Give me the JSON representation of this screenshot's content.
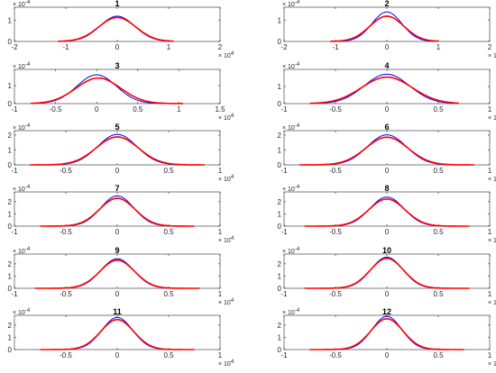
{
  "colors": {
    "series_1": "#0000ff",
    "series_2": "#ff0000",
    "axes": "#262626"
  },
  "chart_data": [
    {
      "type": "line",
      "title": "1",
      "xlim": [
        -2,
        2
      ],
      "ylim": [
        0,
        1.6
      ],
      "x_ticks": [
        "-2",
        "-1",
        "0",
        "1",
        "2"
      ],
      "y_ticks": [
        "0",
        "1"
      ],
      "x_multiplier": "× 10^4",
      "y_multiplier": "× 10^-4",
      "series": [
        {
          "mean": 0.0,
          "peak": 1.18,
          "std": 0.34,
          "xmin": -1.15,
          "xmax": 1.1
        },
        {
          "mean": 0.0,
          "peak": 1.12,
          "std": 0.36,
          "xmin": -1.15,
          "xmax": 1.1
        }
      ]
    },
    {
      "type": "line",
      "title": "2",
      "xlim": [
        -2,
        2
      ],
      "ylim": [
        0,
        1.6
      ],
      "x_ticks": [
        "-2",
        "-1",
        "0",
        "1",
        "2"
      ],
      "y_ticks": [
        "0",
        "1"
      ],
      "x_multiplier": "× 10^4",
      "y_multiplier": "× 10^-4",
      "series": [
        {
          "mean": 0.0,
          "peak": 1.38,
          "std": 0.29,
          "xmin": -1.1,
          "xmax": 1.0
        },
        {
          "mean": 0.0,
          "peak": 1.18,
          "std": 0.33,
          "xmin": -1.1,
          "xmax": 1.0
        }
      ]
    },
    {
      "type": "line",
      "title": "3",
      "xlim": [
        -1,
        1.5
      ],
      "ylim": [
        0,
        1.9
      ],
      "x_ticks": [
        "-1",
        "-0.5",
        "0",
        "0.5",
        "1",
        "1.5"
      ],
      "y_ticks": [
        "0",
        "1"
      ],
      "x_multiplier": "× 10^4",
      "y_multiplier": "× 10^-4",
      "series": [
        {
          "mean": 0.0,
          "peak": 1.6,
          "std": 0.24,
          "xmin": -0.8,
          "xmax": 1.05
        },
        {
          "mean": 0.02,
          "peak": 1.42,
          "std": 0.27,
          "xmin": -0.8,
          "xmax": 1.05
        }
      ]
    },
    {
      "type": "line",
      "title": "4",
      "xlim": [
        -1,
        1
      ],
      "ylim": [
        0,
        2.0
      ],
      "x_ticks": [
        "-1",
        "-0.5",
        "0",
        "0.5",
        "1"
      ],
      "y_ticks": [
        "0",
        "1"
      ],
      "x_multiplier": "× 10^4",
      "y_multiplier": "× 10^-4",
      "series": [
        {
          "mean": 0.0,
          "peak": 1.72,
          "std": 0.22,
          "xmin": -0.75,
          "xmax": 0.7
        },
        {
          "mean": 0.0,
          "peak": 1.55,
          "std": 0.245,
          "xmin": -0.75,
          "xmax": 0.7
        }
      ]
    },
    {
      "type": "line",
      "title": "5",
      "xlim": [
        -1,
        1
      ],
      "ylim": [
        0,
        2.3
      ],
      "x_ticks": [
        "-1",
        "-0.5",
        "0",
        "0.5",
        "1"
      ],
      "y_ticks": [
        "0",
        "1",
        "2"
      ],
      "x_multiplier": "× 10^4",
      "y_multiplier": "× 10^-4",
      "series": [
        {
          "mean": 0.0,
          "peak": 2.05,
          "std": 0.19,
          "xmin": -0.85,
          "xmax": 0.85
        },
        {
          "mean": 0.0,
          "peak": 1.88,
          "std": 0.205,
          "xmin": -0.85,
          "xmax": 0.85
        }
      ]
    },
    {
      "type": "line",
      "title": "6",
      "xlim": [
        -1,
        1
      ],
      "ylim": [
        0,
        2.3
      ],
      "x_ticks": [
        "-1",
        "-0.5",
        "0",
        "0.5",
        "1"
      ],
      "y_ticks": [
        "0",
        "1",
        "2"
      ],
      "x_multiplier": "× 10^4",
      "y_multiplier": "× 10^-4",
      "series": [
        {
          "mean": 0.0,
          "peak": 2.02,
          "std": 0.19,
          "xmin": -0.85,
          "xmax": 0.85
        },
        {
          "mean": 0.0,
          "peak": 1.86,
          "std": 0.205,
          "xmin": -0.85,
          "xmax": 0.85
        }
      ]
    },
    {
      "type": "line",
      "title": "7",
      "xlim": [
        -1,
        1
      ],
      "ylim": [
        0,
        2.8
      ],
      "x_ticks": [
        "-1",
        "-0.5",
        "0",
        "0.5",
        "1"
      ],
      "y_ticks": [
        "0",
        "1",
        "2"
      ],
      "x_multiplier": "× 10^4",
      "y_multiplier": "× 10^-4",
      "series": [
        {
          "mean": 0.0,
          "peak": 2.48,
          "std": 0.16,
          "xmin": -0.75,
          "xmax": 0.75
        },
        {
          "mean": 0.0,
          "peak": 2.28,
          "std": 0.172,
          "xmin": -0.75,
          "xmax": 0.75
        }
      ]
    },
    {
      "type": "line",
      "title": "8",
      "xlim": [
        -1,
        1
      ],
      "ylim": [
        0,
        2.8
      ],
      "x_ticks": [
        "-1",
        "-0.5",
        "0",
        "0.5",
        "1"
      ],
      "y_ticks": [
        "0",
        "1",
        "2"
      ],
      "x_multiplier": "× 10^4",
      "y_multiplier": "× 10^-4",
      "series": [
        {
          "mean": 0.0,
          "peak": 2.38,
          "std": 0.165,
          "xmin": -0.8,
          "xmax": 0.8
        },
        {
          "mean": 0.0,
          "peak": 2.22,
          "std": 0.176,
          "xmin": -0.8,
          "xmax": 0.8
        }
      ]
    },
    {
      "type": "line",
      "title": "9",
      "xlim": [
        -1,
        1
      ],
      "ylim": [
        0,
        2.8
      ],
      "x_ticks": [
        "-1",
        "-0.5",
        "0",
        "0.5",
        "1"
      ],
      "y_ticks": [
        "0",
        "1",
        "2"
      ],
      "x_multiplier": "× 10^4",
      "y_multiplier": "× 10^-4",
      "series": [
        {
          "mean": 0.0,
          "peak": 2.42,
          "std": 0.16,
          "xmin": -0.8,
          "xmax": 0.8
        },
        {
          "mean": 0.0,
          "peak": 2.3,
          "std": 0.168,
          "xmin": -0.8,
          "xmax": 0.8
        }
      ]
    },
    {
      "type": "line",
      "title": "10",
      "xlim": [
        -1,
        1
      ],
      "ylim": [
        0,
        2.8
      ],
      "x_ticks": [
        "-1",
        "-0.5",
        "0",
        "0.5",
        "1"
      ],
      "y_ticks": [
        "0",
        "1",
        "2"
      ],
      "x_multiplier": "× 10^4",
      "y_multiplier": "× 10^-4",
      "series": [
        {
          "mean": 0.0,
          "peak": 2.55,
          "std": 0.155,
          "xmin": -0.8,
          "xmax": 0.8
        },
        {
          "mean": 0.0,
          "peak": 2.45,
          "std": 0.162,
          "xmin": -0.8,
          "xmax": 0.8
        }
      ]
    },
    {
      "type": "line",
      "title": "11",
      "xlim": [
        -1,
        1
      ],
      "ylim": [
        0,
        2.8
      ],
      "x_ticks": [
        "-0.5",
        "0",
        "0.5",
        "1"
      ],
      "y_ticks": [
        "0",
        "1",
        "2"
      ],
      "x_multiplier": "× 10^4",
      "y_multiplier": "× 10^-4",
      "series": [
        {
          "mean": 0.0,
          "peak": 2.62,
          "std": 0.15,
          "xmin": -0.75,
          "xmax": 0.75
        },
        {
          "mean": 0.0,
          "peak": 2.45,
          "std": 0.16,
          "xmin": -0.75,
          "xmax": 0.75
        }
      ]
    },
    {
      "type": "line",
      "title": "12",
      "xlim": [
        -1,
        1
      ],
      "ylim": [
        0,
        2.8
      ],
      "x_ticks": [
        "-1",
        "-0.5",
        "0",
        "0.5",
        "1"
      ],
      "y_ticks": [
        "0",
        "1",
        "2"
      ],
      "x_multiplier": "× 10^4",
      "y_multiplier": "× 10^-4",
      "series": [
        {
          "mean": 0.0,
          "peak": 2.72,
          "std": 0.145,
          "xmin": -0.75,
          "xmax": 0.75
        },
        {
          "mean": 0.0,
          "peak": 2.52,
          "std": 0.156,
          "xmin": -0.75,
          "xmax": 0.75
        }
      ]
    }
  ]
}
